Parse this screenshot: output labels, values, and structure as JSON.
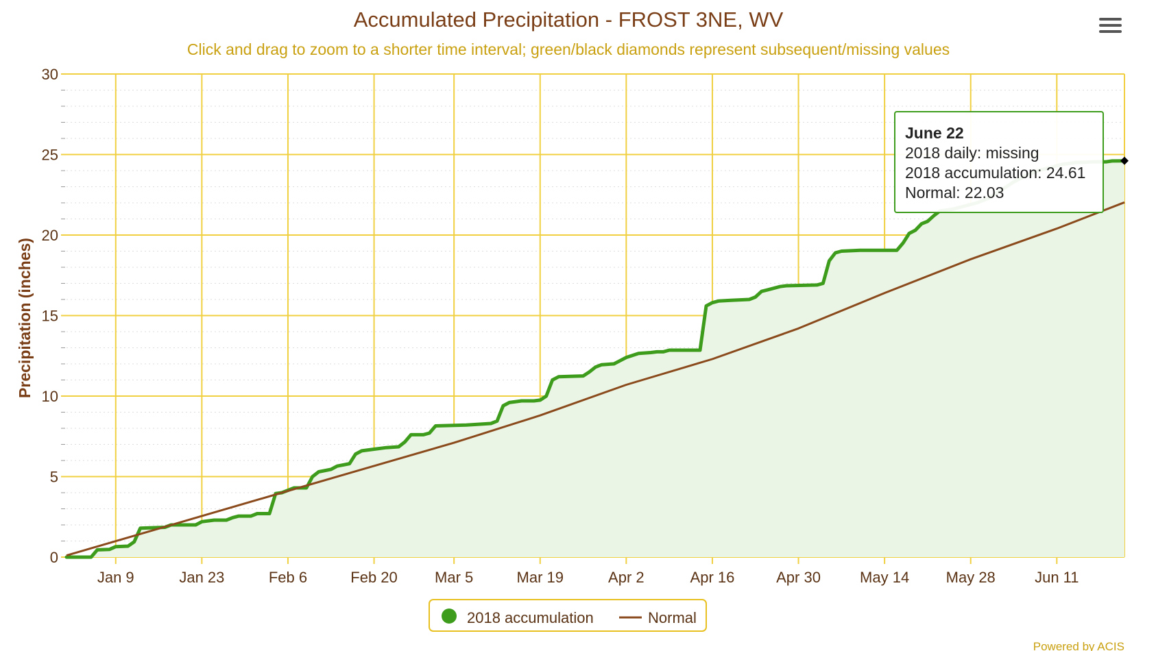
{
  "chart_data": {
    "type": "line",
    "title": "Accumulated Precipitation - FROST 3NE, WV",
    "subtitle": "Click and drag to zoom to a shorter time interval; green/black diamonds represent subsequent/missing values",
    "ylabel": "Precipitation (inches)",
    "xlabel": "",
    "ylim": [
      0,
      30
    ],
    "y_ticks": [
      0,
      5,
      10,
      15,
      20,
      25,
      30
    ],
    "x_range": [
      "2018-01-01",
      "2018-06-22"
    ],
    "x_ticks": [
      {
        "date": "2018-01-09",
        "label": "Jan 9"
      },
      {
        "date": "2018-01-23",
        "label": "Jan 23"
      },
      {
        "date": "2018-02-06",
        "label": "Feb 6"
      },
      {
        "date": "2018-02-20",
        "label": "Feb 20"
      },
      {
        "date": "2018-03-05",
        "label": "Mar 5"
      },
      {
        "date": "2018-03-19",
        "label": "Mar 19"
      },
      {
        "date": "2018-04-02",
        "label": "Apr 2"
      },
      {
        "date": "2018-04-16",
        "label": "Apr 16"
      },
      {
        "date": "2018-04-30",
        "label": "Apr 30"
      },
      {
        "date": "2018-05-14",
        "label": "May 14"
      },
      {
        "date": "2018-05-28",
        "label": "May 28"
      },
      {
        "date": "2018-06-11",
        "label": "Jun 11"
      }
    ],
    "grid": true,
    "legend_position": "bottom-center",
    "series": [
      {
        "name": "2018 accumulation",
        "color": "#3e9c1c",
        "style": "step-area",
        "points": [
          [
            "2018-01-01",
            0.0
          ],
          [
            "2018-01-05",
            0.0
          ],
          [
            "2018-01-06",
            0.45
          ],
          [
            "2018-01-08",
            0.48
          ],
          [
            "2018-01-09",
            0.65
          ],
          [
            "2018-01-11",
            0.68
          ],
          [
            "2018-01-12",
            0.95
          ],
          [
            "2018-01-13",
            1.8
          ],
          [
            "2018-01-17",
            1.85
          ],
          [
            "2018-01-18",
            2.0
          ],
          [
            "2018-01-22",
            2.0
          ],
          [
            "2018-01-23",
            2.2
          ],
          [
            "2018-01-25",
            2.3
          ],
          [
            "2018-01-27",
            2.3
          ],
          [
            "2018-01-28",
            2.45
          ],
          [
            "2018-01-29",
            2.55
          ],
          [
            "2018-01-31",
            2.55
          ],
          [
            "2018-02-01",
            2.7
          ],
          [
            "2018-02-03",
            2.7
          ],
          [
            "2018-02-04",
            3.95
          ],
          [
            "2018-02-05",
            4.0
          ],
          [
            "2018-02-06",
            4.15
          ],
          [
            "2018-02-07",
            4.3
          ],
          [
            "2018-02-09",
            4.3
          ],
          [
            "2018-02-10",
            5.0
          ],
          [
            "2018-02-11",
            5.3
          ],
          [
            "2018-02-13",
            5.45
          ],
          [
            "2018-02-14",
            5.65
          ],
          [
            "2018-02-16",
            5.8
          ],
          [
            "2018-02-17",
            6.4
          ],
          [
            "2018-02-18",
            6.6
          ],
          [
            "2018-02-20",
            6.7
          ],
          [
            "2018-02-22",
            6.8
          ],
          [
            "2018-02-24",
            6.85
          ],
          [
            "2018-02-25",
            7.15
          ],
          [
            "2018-02-26",
            7.6
          ],
          [
            "2018-02-28",
            7.6
          ],
          [
            "2018-03-01",
            7.7
          ],
          [
            "2018-03-02",
            8.15
          ],
          [
            "2018-03-07",
            8.2
          ],
          [
            "2018-03-09",
            8.25
          ],
          [
            "2018-03-11",
            8.3
          ],
          [
            "2018-03-12",
            8.45
          ],
          [
            "2018-03-13",
            9.4
          ],
          [
            "2018-03-14",
            9.6
          ],
          [
            "2018-03-16",
            9.7
          ],
          [
            "2018-03-18",
            9.7
          ],
          [
            "2018-03-19",
            9.75
          ],
          [
            "2018-03-20",
            10.0
          ],
          [
            "2018-03-21",
            11.0
          ],
          [
            "2018-03-22",
            11.2
          ],
          [
            "2018-03-26",
            11.25
          ],
          [
            "2018-03-27",
            11.5
          ],
          [
            "2018-03-28",
            11.8
          ],
          [
            "2018-03-29",
            11.95
          ],
          [
            "2018-03-31",
            12.0
          ],
          [
            "2018-04-01",
            12.2
          ],
          [
            "2018-04-02",
            12.4
          ],
          [
            "2018-04-04",
            12.65
          ],
          [
            "2018-04-06",
            12.7
          ],
          [
            "2018-04-07",
            12.75
          ],
          [
            "2018-04-08",
            12.75
          ],
          [
            "2018-04-09",
            12.85
          ],
          [
            "2018-04-14",
            12.85
          ],
          [
            "2018-04-15",
            15.6
          ],
          [
            "2018-04-16",
            15.8
          ],
          [
            "2018-04-17",
            15.9
          ],
          [
            "2018-04-19",
            15.95
          ],
          [
            "2018-04-22",
            16.0
          ],
          [
            "2018-04-23",
            16.15
          ],
          [
            "2018-04-24",
            16.5
          ],
          [
            "2018-04-25",
            16.6
          ],
          [
            "2018-04-26",
            16.7
          ],
          [
            "2018-04-27",
            16.8
          ],
          [
            "2018-04-28",
            16.85
          ],
          [
            "2018-05-03",
            16.9
          ],
          [
            "2018-05-04",
            17.0
          ],
          [
            "2018-05-05",
            18.4
          ],
          [
            "2018-05-06",
            18.9
          ],
          [
            "2018-05-07",
            19.0
          ],
          [
            "2018-05-10",
            19.05
          ],
          [
            "2018-05-16",
            19.05
          ],
          [
            "2018-05-17",
            19.5
          ],
          [
            "2018-05-18",
            20.1
          ],
          [
            "2018-05-19",
            20.3
          ],
          [
            "2018-05-20",
            20.7
          ],
          [
            "2018-05-21",
            20.85
          ],
          [
            "2018-05-22",
            21.2
          ],
          [
            "2018-05-23",
            21.5
          ],
          [
            "2018-05-25",
            21.6
          ],
          [
            "2018-05-27",
            21.8
          ],
          [
            "2018-05-29",
            22.0
          ],
          [
            "2018-05-31",
            22.3
          ],
          [
            "2018-06-02",
            22.8
          ],
          [
            "2018-06-04",
            23.3
          ],
          [
            "2018-06-06",
            23.7
          ],
          [
            "2018-06-08",
            24.0
          ],
          [
            "2018-06-10",
            24.2
          ],
          [
            "2018-06-12",
            24.4
          ],
          [
            "2018-06-14",
            24.5
          ],
          [
            "2018-06-17",
            24.55
          ],
          [
            "2018-06-19",
            24.55
          ],
          [
            "2018-06-20",
            24.6
          ],
          [
            "2018-06-22",
            24.61
          ]
        ]
      },
      {
        "name": "Normal",
        "color": "#8a4a1c",
        "style": "line",
        "points": [
          [
            "2018-01-01",
            0.1
          ],
          [
            "2018-02-05",
            4.0
          ],
          [
            "2018-03-05",
            7.1
          ],
          [
            "2018-03-19",
            8.8
          ],
          [
            "2018-04-02",
            10.7
          ],
          [
            "2018-04-16",
            12.3
          ],
          [
            "2018-04-30",
            14.2
          ],
          [
            "2018-05-14",
            16.4
          ],
          [
            "2018-05-28",
            18.5
          ],
          [
            "2018-06-11",
            20.4
          ],
          [
            "2018-06-22",
            22.03
          ]
        ]
      }
    ],
    "missing_markers": [
      [
        "2018-06-22",
        24.61
      ]
    ]
  },
  "tooltip": {
    "date_label": "June 22",
    "line1": "2018 daily: missing",
    "line2": "2018 accumulation: 24.61",
    "line3": "Normal: 22.03"
  },
  "credit": "Powered by ACIS",
  "colors": {
    "grid_major": "#f0d040",
    "grid_minor": "#dddddd",
    "area_fill": "#eaf5e5"
  }
}
